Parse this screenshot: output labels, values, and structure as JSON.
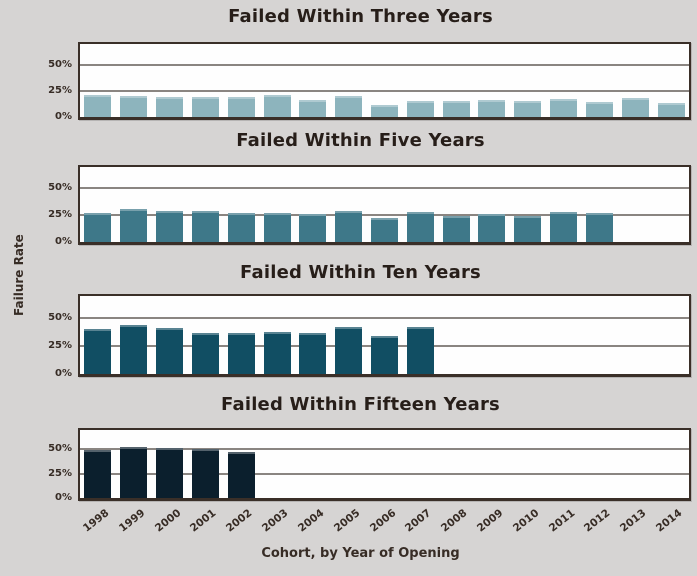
{
  "page": {
    "background": "#d6d4d3",
    "ylabel": "Failure Rate",
    "xlabel": "Cohort, by Year of Opening"
  },
  "categories": [
    "1998",
    "1999",
    "2000",
    "2001",
    "2002",
    "2003",
    "2004",
    "2005",
    "2006",
    "2007",
    "2008",
    "2009",
    "2010",
    "2011",
    "2012",
    "2013",
    "2014"
  ],
  "y_axis": {
    "max": 70,
    "ticks": [
      {
        "value": 0,
        "label": "0%"
      },
      {
        "value": 25,
        "label": "25%"
      },
      {
        "value": 50,
        "label": "50%"
      }
    ],
    "grid": true
  },
  "chart_data": [
    {
      "type": "bar",
      "title": "Failed Within Three Years",
      "color": "#8db4bd",
      "ylim": [
        0,
        70
      ],
      "unit": "%",
      "values": [
        21,
        20,
        19,
        19,
        19,
        21,
        16,
        20,
        12,
        15,
        15,
        16,
        15,
        17,
        14,
        18,
        13
      ]
    },
    {
      "type": "bar",
      "title": "Failed Within Five Years",
      "color": "#3e7889",
      "ylim": [
        0,
        70
      ],
      "unit": "%",
      "values": [
        27,
        31,
        29,
        29,
        27,
        27,
        26,
        29,
        22,
        28,
        24,
        26,
        24,
        28,
        27
      ]
    },
    {
      "type": "bar",
      "title": "Failed Within Ten Years",
      "color": "#114e63",
      "ylim": [
        0,
        70
      ],
      "unit": "%",
      "values": [
        40,
        44,
        41,
        37,
        37,
        38,
        37,
        42,
        34,
        42
      ]
    },
    {
      "type": "bar",
      "title": "Failed Within Fifteen Years",
      "color": "#0b1f2d",
      "ylim": [
        0,
        70
      ],
      "unit": "%",
      "values": [
        49,
        53,
        51,
        50,
        47
      ]
    }
  ]
}
